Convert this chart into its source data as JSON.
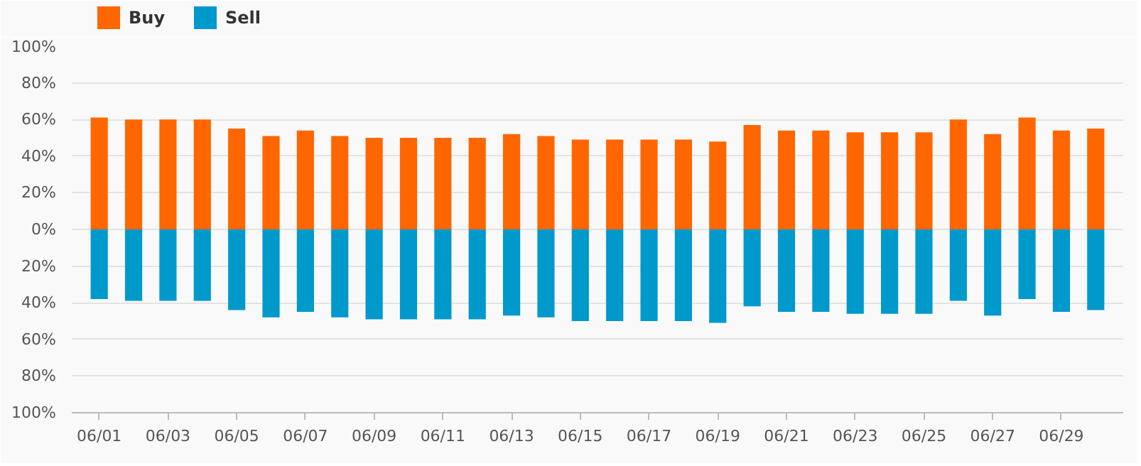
{
  "chart_data": {
    "type": "bar",
    "stacked": true,
    "categories": [
      "06/01",
      null,
      "06/03",
      null,
      "06/05",
      null,
      "06/07",
      null,
      "06/09",
      null,
      "06/11",
      null,
      "06/13",
      null,
      "06/15",
      null,
      "06/17",
      null,
      "06/19",
      null,
      "06/21",
      null,
      "06/23",
      null,
      "06/25",
      null,
      "06/27",
      null,
      "06/29",
      null
    ],
    "series": [
      {
        "name": "Buy",
        "color": "#ff6600",
        "values": [
          61,
          60,
          60,
          60,
          55,
          51,
          54,
          51,
          50,
          50,
          50,
          50,
          52,
          51,
          49,
          49,
          49,
          49,
          48,
          57,
          54,
          54,
          53,
          53,
          53,
          60,
          52,
          61,
          54,
          55
        ]
      },
      {
        "name": "Sell",
        "color": "#0099cc",
        "values": [
          -38,
          -39,
          -39,
          -39,
          -44,
          -48,
          -45,
          -48,
          -49,
          -49,
          -49,
          -49,
          -47,
          -48,
          -50,
          -50,
          -50,
          -50,
          -51,
          -42,
          -45,
          -45,
          -46,
          -46,
          -46,
          -39,
          -47,
          -38,
          -45,
          -44
        ]
      }
    ],
    "ylim": [
      -100,
      100
    ],
    "yticks": [
      {
        "value": -100,
        "label": "100%"
      },
      {
        "value": -80,
        "label": "80%"
      },
      {
        "value": -60,
        "label": "60%"
      },
      {
        "value": -40,
        "label": "40%"
      },
      {
        "value": -20,
        "label": "20%"
      },
      {
        "value": 0,
        "label": "0%"
      },
      {
        "value": 20,
        "label": "20%"
      },
      {
        "value": 40,
        "label": "40%"
      },
      {
        "value": 60,
        "label": "60%"
      },
      {
        "value": 80,
        "label": "80%"
      },
      {
        "value": 100,
        "label": "100%"
      }
    ],
    "grid": "y",
    "legend": "top left"
  }
}
